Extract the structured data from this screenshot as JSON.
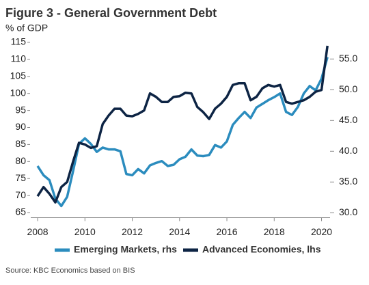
{
  "chart_data": {
    "type": "line",
    "title": "Figure 3 - General Government Debt",
    "subtitle": "% of GDP",
    "source": "Source: KBC Economics based on BIS",
    "x": [
      2008,
      2008.25,
      2008.5,
      2008.75,
      2009,
      2009.25,
      2009.5,
      2009.75,
      2010,
      2010.25,
      2010.5,
      2010.75,
      2011,
      2011.25,
      2011.5,
      2011.75,
      2012,
      2012.25,
      2012.5,
      2012.75,
      2013,
      2013.25,
      2013.5,
      2013.75,
      2014,
      2014.25,
      2014.5,
      2014.75,
      2015,
      2015.25,
      2015.5,
      2015.75,
      2016,
      2016.25,
      2016.5,
      2016.75,
      2017,
      2017.25,
      2017.5,
      2017.75,
      2018,
      2018.25,
      2018.5,
      2018.75,
      2019,
      2019.25,
      2019.5,
      2019.75,
      2020,
      2020.25
    ],
    "series": [
      {
        "name": "Emerging Markets, rhs",
        "color": "#2b8cbe",
        "axis": "y2",
        "values": [
          37.6,
          36.1,
          35.3,
          32.3,
          31.1,
          32.6,
          36.8,
          41.2,
          42.1,
          41.2,
          39.9,
          40.6,
          40.3,
          40.3,
          40,
          36.3,
          36.1,
          37.1,
          36.4,
          37.7,
          38.1,
          38.4,
          37.6,
          37.8,
          38.7,
          39.1,
          40.3,
          39.3,
          39.2,
          39.4,
          41,
          40.6,
          41.6,
          44.3,
          45.4,
          46.4,
          45.4,
          47.1,
          47.7,
          48.3,
          48.8,
          49.4,
          46.4,
          45.9,
          47.2,
          49.4,
          50.6,
          49.9,
          51.8,
          55.3
        ]
      },
      {
        "name": "Advanced Economies, lhs",
        "color": "#0d2444",
        "values": [
          69.8,
          72.5,
          70.5,
          68,
          72.5,
          74,
          80,
          85.5,
          85,
          84,
          84.5,
          91,
          93.5,
          95.5,
          95.5,
          93.5,
          93.3,
          94,
          95,
          100,
          99,
          97.5,
          97.5,
          99,
          99.2,
          100.2,
          100,
          96,
          94.5,
          92.5,
          95.5,
          97,
          99,
          102.5,
          103,
          103,
          98,
          99,
          101.5,
          102.5,
          102,
          102.5,
          97.5,
          97,
          97.5,
          98,
          99,
          100.5,
          101,
          114
        ]
      }
    ],
    "xlim": [
      2007.71,
      2020.36
    ],
    "xticks": [
      2008,
      2010,
      2012,
      2014,
      2016,
      2018,
      2020
    ],
    "ylim": [
      63.5,
      115
    ],
    "yticks": [
      65,
      70,
      75,
      80,
      85,
      90,
      95,
      100,
      105,
      110,
      115
    ],
    "y2lim": [
      29.2,
      57.7
    ],
    "y2ticks": [
      {
        "value": 30,
        "label": "30.0"
      },
      {
        "value": 35,
        "label": "35.0"
      },
      {
        "value": 40,
        "label": "40.0"
      },
      {
        "value": 45,
        "label": "45.0"
      },
      {
        "value": 50,
        "label": "50.0"
      },
      {
        "value": 55,
        "label": "55.0"
      }
    ],
    "legend": "bottom"
  }
}
